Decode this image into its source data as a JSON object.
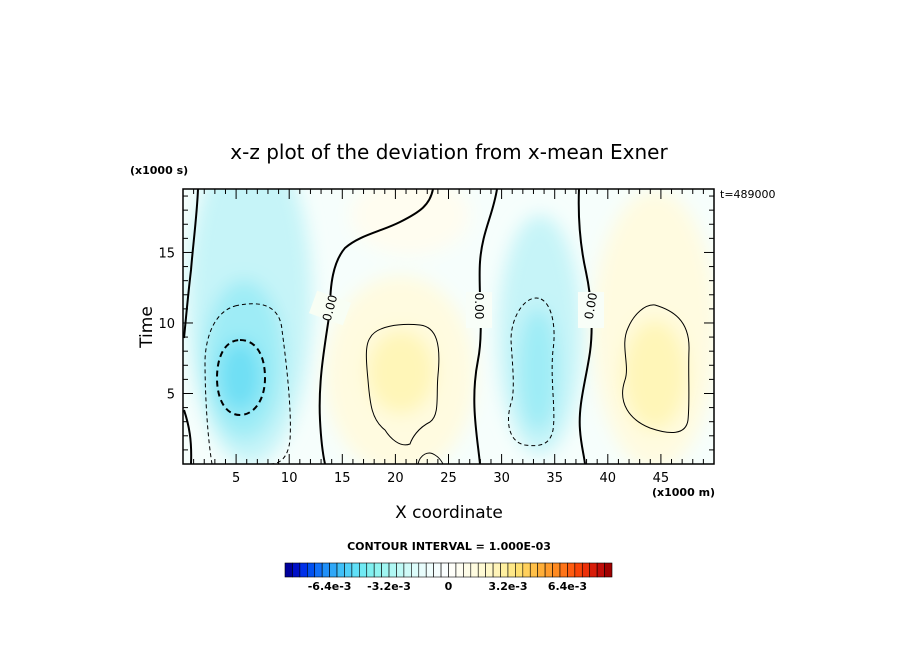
{
  "chart_data": {
    "type": "heatmap",
    "title": "x-z plot of the deviation from x-mean Exner",
    "xlabel": "X coordinate",
    "ylabel": "Time",
    "x_unit": "(x1000 m)",
    "y_unit": "(x1000 s)",
    "timestamp": "t=489000",
    "xlim": [
      0,
      50
    ],
    "ylim": [
      0,
      19.5
    ],
    "x_ticks": [
      {
        "value": 5,
        "label": "5"
      },
      {
        "value": 10,
        "label": "10"
      },
      {
        "value": 15,
        "label": "15"
      },
      {
        "value": 20,
        "label": "20"
      },
      {
        "value": 25,
        "label": "25"
      },
      {
        "value": 30,
        "label": "30"
      },
      {
        "value": 35,
        "label": "35"
      },
      {
        "value": 40,
        "label": "40"
      },
      {
        "value": 45,
        "label": "45"
      }
    ],
    "y_ticks": [
      {
        "value": 5,
        "label": "5"
      },
      {
        "value": 10,
        "label": "10"
      },
      {
        "value": 15,
        "label": "15"
      }
    ],
    "contour_interval_text": "CONTOUR INTERVAL = 1.000E-03",
    "contour_interval": 0.001,
    "zero_contour_labels": [
      "0.00",
      "0.00",
      "0.00"
    ],
    "field_features": [
      {
        "kind": "minimum",
        "x": 5.5,
        "y": 6.5,
        "value": -0.0027
      },
      {
        "kind": "maximum",
        "x": 20.5,
        "y": 7.5,
        "value": 0.0013
      },
      {
        "kind": "minimum",
        "x": 33.5,
        "y": 7.5,
        "value": -0.0015
      },
      {
        "kind": "maximum",
        "x": 45.5,
        "y": 7.5,
        "value": 0.0013
      }
    ],
    "colorbar": {
      "min": -0.0088,
      "max": 0.0088,
      "n_levels": 44,
      "tick_labels": [
        {
          "value": -0.0064,
          "label": "-6.4e-3"
        },
        {
          "value": -0.0032,
          "label": "-3.2e-3"
        },
        {
          "value": 0,
          "label": "0"
        },
        {
          "value": 0.0032,
          "label": "3.2e-3"
        },
        {
          "value": 0.0064,
          "label": "6.4e-3"
        }
      ],
      "colors_negative": [
        "#00009c",
        "#0010c8",
        "#0030e8",
        "#0050f0",
        "#1070f8",
        "#2090f8",
        "#30a8f8",
        "#40c0f8",
        "#50d0f8",
        "#60e0f8",
        "#70eaf4",
        "#80f0f0",
        "#90f4f0",
        "#a0f6f2",
        "#b0f8f4",
        "#c0faf6",
        "#d0fbf8",
        "#dcfcfa",
        "#e8fdfc",
        "#f0fefd",
        "#f6fefe",
        "#fbffff"
      ],
      "colors_positive": [
        "#fffffa",
        "#fffef2",
        "#fffde8",
        "#fffce0",
        "#fffad4",
        "#fff8c8",
        "#fff4b8",
        "#fff0a0",
        "#ffe888",
        "#ffe070",
        "#ffd05c",
        "#ffc048",
        "#ffae38",
        "#ff9c2c",
        "#ff8a20",
        "#ff7418",
        "#ff5c10",
        "#f84408",
        "#ec3008",
        "#d81c08",
        "#c00c08",
        "#a00000"
      ]
    }
  }
}
